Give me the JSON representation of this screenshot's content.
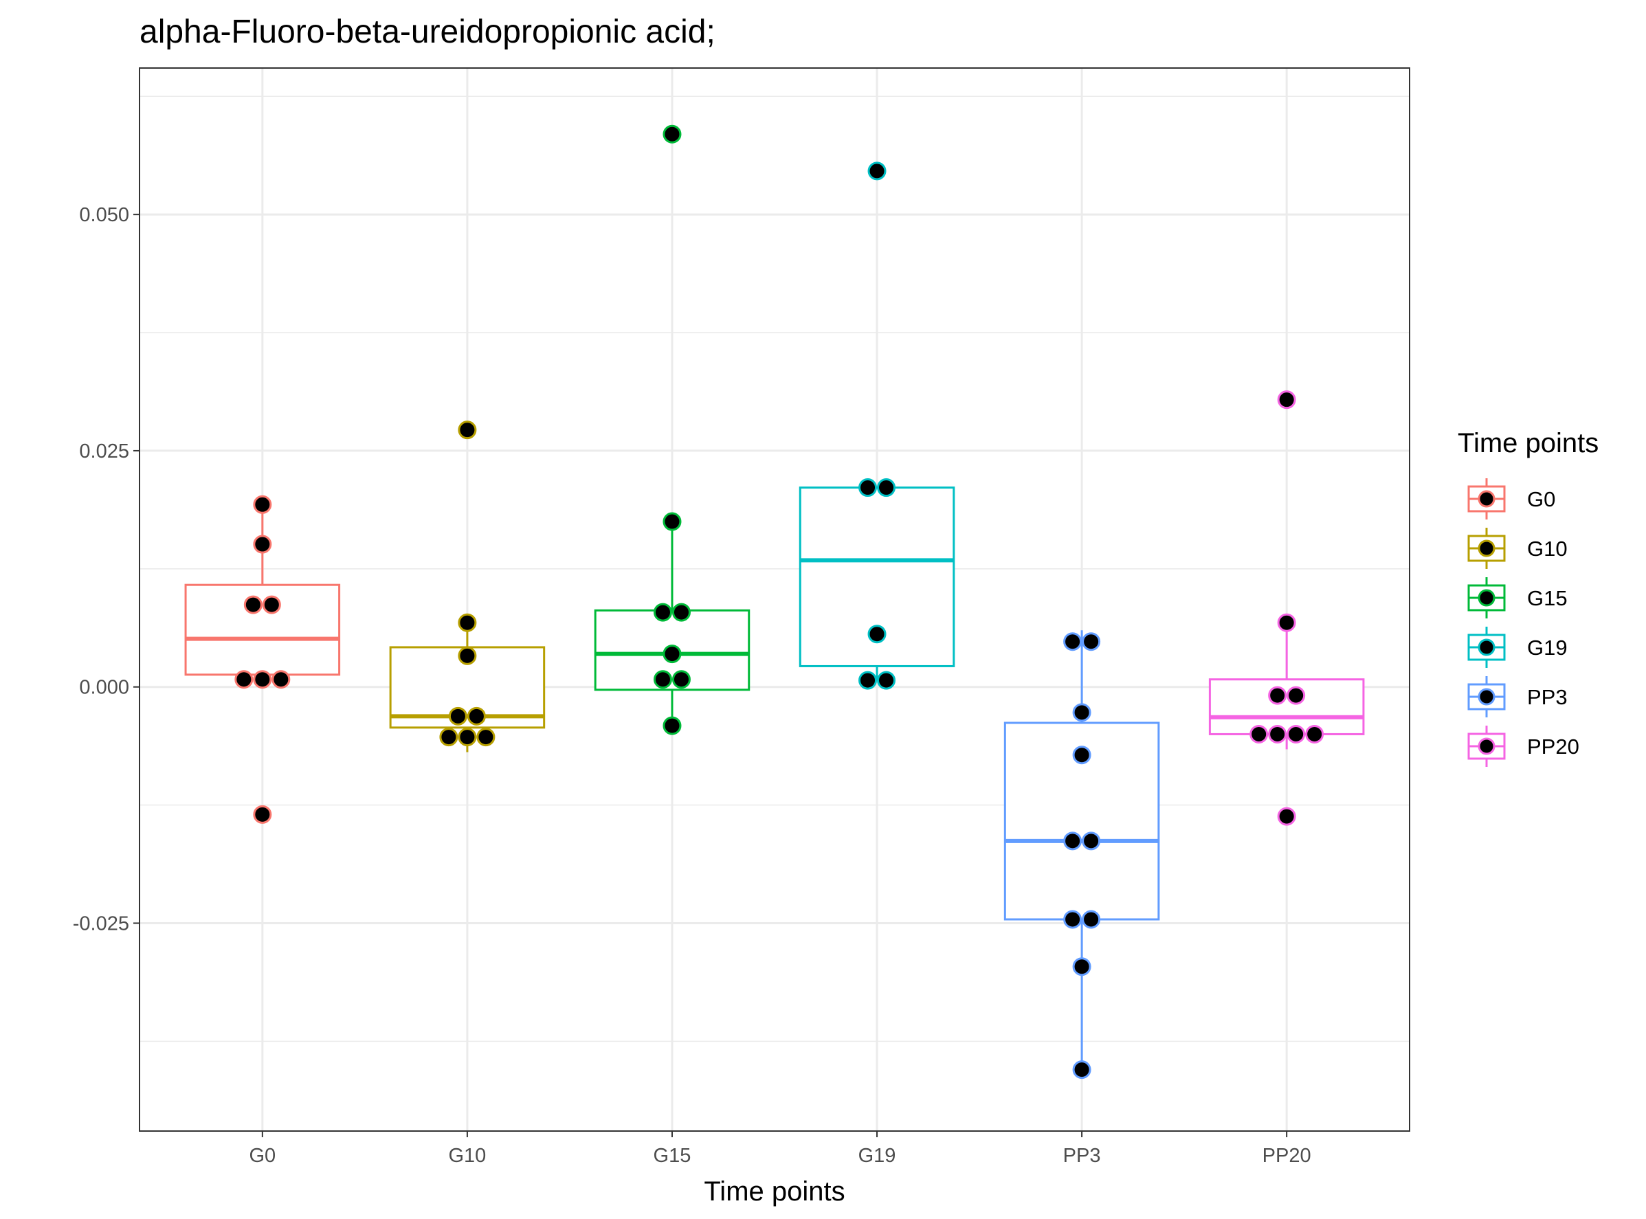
{
  "chart_data": {
    "type": "box",
    "title": "alpha-Fluoro-beta-ureidopropionic acid;",
    "xlabel": "Time points",
    "ylabel": "",
    "ylim": [
      -0.047,
      0.0655
    ],
    "yticks": [
      -0.025,
      0.0,
      0.025,
      0.05
    ],
    "ytick_labels": [
      "-0.025",
      "0.000",
      "0.025",
      "0.050"
    ],
    "grid": true,
    "legend": {
      "title": "Time points",
      "position": "right"
    },
    "categories": [
      "G0",
      "G10",
      "G15",
      "G19",
      "PP3",
      "PP20"
    ],
    "colors": [
      "#F8766D",
      "#B79F00",
      "#00BA38",
      "#00BFC4",
      "#619CFF",
      "#F564E3"
    ],
    "boxes": [
      {
        "name": "G0",
        "whisker_low": 0.0008,
        "q1": 0.0013,
        "median": 0.0051,
        "q3": 0.0108,
        "whisker_high": 0.0193
      },
      {
        "name": "G10",
        "whisker_low": -0.0069,
        "q1": -0.0043,
        "median": -0.0031,
        "q3": 0.0042,
        "whisker_high": 0.0068
      },
      {
        "name": "G15",
        "whisker_low": -0.0041,
        "q1": -0.0003,
        "median": 0.0035,
        "q3": 0.0081,
        "whisker_high": 0.0175
      },
      {
        "name": "G19",
        "whisker_low": 0.0007,
        "q1": 0.0022,
        "median": 0.0134,
        "q3": 0.0211,
        "whisker_high": 0.0211
      },
      {
        "name": "PP3",
        "whisker_low": -0.0405,
        "q1": -0.0246,
        "median": -0.0163,
        "q3": -0.0038,
        "whisker_high": 0.006
      },
      {
        "name": "PP20",
        "whisker_low": -0.0066,
        "q1": -0.005,
        "median": -0.0032,
        "q3": 0.0008,
        "whisker_high": 0.0068
      }
    ],
    "points": [
      {
        "name": "G0",
        "values": [
          0.0193,
          0.0151,
          0.0087,
          0.0087,
          0.0008,
          0.0008,
          0.0008,
          -0.0135
        ]
      },
      {
        "name": "G10",
        "values": [
          0.0272,
          0.0068,
          0.0033,
          -0.0031,
          -0.0031,
          -0.0053,
          -0.0053,
          -0.0053
        ]
      },
      {
        "name": "G15",
        "values": [
          0.0585,
          0.0175,
          0.0079,
          0.0079,
          0.0035,
          0.0008,
          0.0008,
          -0.0041
        ]
      },
      {
        "name": "G19",
        "values": [
          0.0546,
          0.0211,
          0.0211,
          0.0056,
          0.0007,
          0.0007
        ]
      },
      {
        "name": "PP3",
        "values": [
          0.0048,
          0.0048,
          -0.0027,
          -0.0072,
          -0.0163,
          -0.0163,
          -0.0246,
          -0.0246,
          -0.0296,
          -0.0405
        ]
      },
      {
        "name": "PP20",
        "values": [
          0.0304,
          0.0068,
          -0.0009,
          -0.0009,
          -0.005,
          -0.005,
          -0.005,
          -0.005,
          -0.0137
        ]
      }
    ]
  }
}
